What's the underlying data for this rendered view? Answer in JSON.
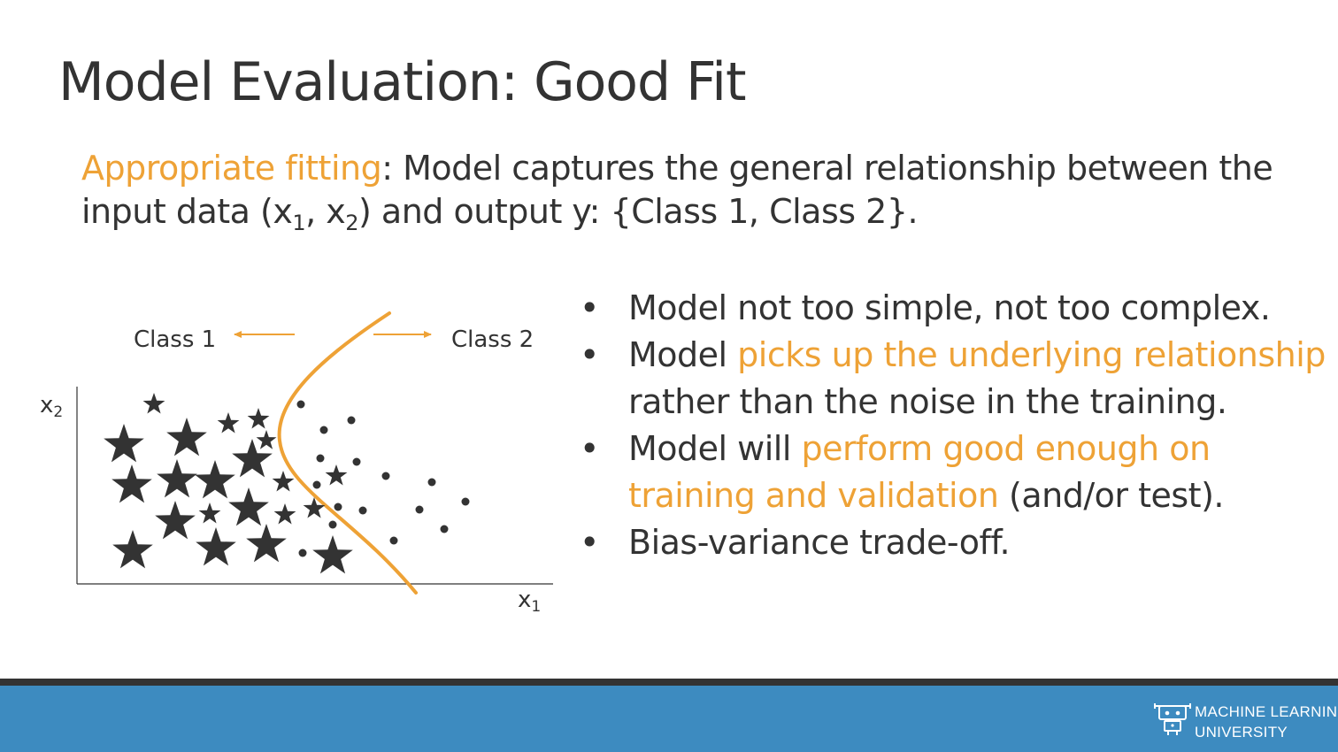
{
  "title": "Model Evaluation: Good Fit",
  "intro": {
    "term": "Appropriate fitting",
    "text_a": ": Model captures the general relationship between the input data (x",
    "sub1": "1",
    "text_b": ", x",
    "sub2": "2",
    "text_c": ") and output y: {Class 1, Class 2}."
  },
  "bullets": [
    {
      "parts": [
        "Model not too simple, not too complex."
      ]
    },
    {
      "parts": [
        "Model ",
        "picks up the underlying relationship",
        " rather than the noise in the training."
      ]
    },
    {
      "parts": [
        "Model will ",
        "perform good enough on training and validation",
        " (and/or test)."
      ]
    },
    {
      "parts": [
        "Bias-variance trade-off."
      ]
    }
  ],
  "bullet_symbol": "•",
  "diagram": {
    "class1_label": "Class 1",
    "class2_label": "Class 2",
    "x_axis_label": "x",
    "x_axis_sub": "1",
    "y_axis_label": "x",
    "y_axis_sub": "2",
    "boundary_color": "#eea236",
    "marker_color": "#333333"
  },
  "footer": {
    "org_line1": "MACHINE LEARNING",
    "org_line2": "UNIVERSITY",
    "bar_color": "#3d8bc0",
    "logo_icon": "robot-icon"
  },
  "colors": {
    "accent": "#eea236",
    "text": "#333333"
  }
}
